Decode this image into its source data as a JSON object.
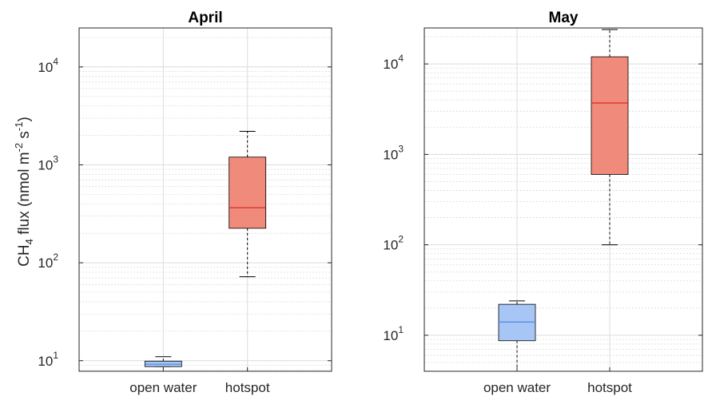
{
  "chart_data": [
    {
      "type": "box",
      "title": "April",
      "ylabel": {
        "prefix": "CH",
        "sub": "4",
        "mid1": " flux (nmol m",
        "sup1": "-2",
        "mid2": " s",
        "sup2": "-1",
        "suffix": ")"
      },
      "yscale": "log",
      "ylim": [
        7.8,
        25000
      ],
      "ytick_values": [
        10,
        100,
        1000,
        10000
      ],
      "ytick_labels": [
        {
          "base": "10",
          "exp": "1"
        },
        {
          "base": "10",
          "exp": "2"
        },
        {
          "base": "10",
          "exp": "3"
        },
        {
          "base": "10",
          "exp": "4"
        }
      ],
      "grid": true,
      "categories": [
        "open water",
        "hotspot"
      ],
      "boxes": [
        {
          "whisker_low": 8.7,
          "q1": 8.7,
          "median": 9.2,
          "q3": 9.9,
          "whisker_high": 11,
          "color": "#a7c6f5"
        },
        {
          "whisker_low": 72,
          "q1": 225,
          "median": 365,
          "q3": 1200,
          "whisker_high": 2200,
          "color": "#f08b7b"
        }
      ]
    },
    {
      "type": "box",
      "title": "May",
      "ylabel": null,
      "yscale": "log",
      "ylim": [
        4,
        25000
      ],
      "ytick_values": [
        10,
        100,
        1000,
        10000
      ],
      "ytick_labels": [
        {
          "base": "10",
          "exp": "1"
        },
        {
          "base": "10",
          "exp": "2"
        },
        {
          "base": "10",
          "exp": "3"
        },
        {
          "base": "10",
          "exp": "4"
        }
      ],
      "grid": true,
      "categories": [
        "open water",
        "hotspot"
      ],
      "boxes": [
        {
          "whisker_low": 4,
          "q1": 8.7,
          "median": 14,
          "q3": 22,
          "whisker_high": 24,
          "color": "#a7c6f5"
        },
        {
          "whisker_low": 100,
          "q1": 600,
          "median": 3700,
          "q3": 12000,
          "whisker_high": 24000,
          "color": "#f08b7b"
        }
      ]
    }
  ],
  "colors": {
    "median_line": "#d62d20",
    "grid": "#dcdcdc",
    "axes": "#262626"
  }
}
